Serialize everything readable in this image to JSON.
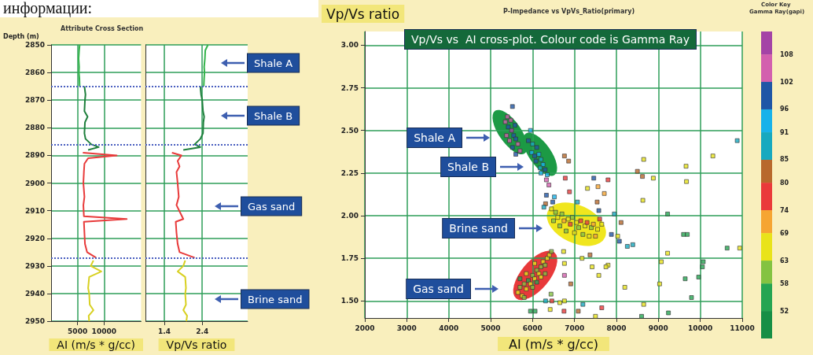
{
  "chart_data": [
    {
      "type": "line",
      "title": "Attribute Cross Section",
      "ylabel": "Depth (m)",
      "xlabel": "AI (m/s * g/cc)",
      "xlim": [
        0,
        17000
      ],
      "xticks": [
        5000,
        10000
      ],
      "ylim": [
        2950,
        2850
      ],
      "yticks": [
        2850,
        2860,
        2870,
        2880,
        2890,
        2900,
        2910,
        2920,
        2930,
        2940,
        2950
      ],
      "grid": true,
      "marker": "none",
      "line_style": "solid",
      "annotations": [
        "информации:"
      ],
      "ref_lines": [
        {
          "axis": "y",
          "value": 2865,
          "color": "#4a5fc0",
          "line_style": "dotted"
        },
        {
          "axis": "y",
          "value": 2886,
          "color": "#4a5fc0",
          "line_style": "dotted"
        },
        {
          "axis": "y",
          "value": 2927,
          "color": "#4a5fc0",
          "line_style": "dotted"
        }
      ],
      "series": [
        {
          "color": "#33b44a",
          "x": [
            5400,
            5300,
            5200,
            5300,
            5250,
            5350,
            5400
          ],
          "values": [
            2850,
            2852,
            2855,
            2858,
            2860,
            2862,
            2865
          ]
        },
        {
          "color": "#1e7f3c",
          "x": [
            6300,
            6500,
            6400,
            6300,
            6900,
            6400,
            6300,
            6500,
            7600,
            9000,
            7000
          ],
          "values": [
            2865,
            2868,
            2870,
            2874,
            2876,
            2878,
            2882,
            2884,
            2886,
            2887,
            2888
          ]
        },
        {
          "color": "#e83a3a",
          "x": [
            6000,
            12400,
            7000,
            6300,
            6200,
            6100,
            6300,
            6100,
            6200,
            14300,
            6200,
            6300,
            6400,
            6800,
            8500
          ],
          "values": [
            2889,
            2890,
            2891,
            2893,
            2896,
            2900,
            2905,
            2908,
            2912,
            2913,
            2914,
            2918,
            2922,
            2925,
            2927
          ]
        },
        {
          "color": "#d8d020",
          "x": [
            8000,
            7500,
            9500,
            7200,
            7000,
            7200,
            7300,
            8000,
            7100,
            7200
          ],
          "values": [
            2928,
            2930,
            2932,
            2934,
            2938,
            2940,
            2944,
            2946,
            2948,
            2950
          ]
        }
      ]
    },
    {
      "type": "line",
      "xlabel": "Vp/Vs ratio",
      "xlim": [
        0.9,
        3.6
      ],
      "xticks": [
        1.4,
        2.4
      ],
      "ylim": [
        2950,
        2850
      ],
      "yticks": [
        2850,
        2860,
        2870,
        2880,
        2890,
        2900,
        2910,
        2920,
        2930,
        2940,
        2950
      ],
      "tick_labels": "x",
      "grid": true,
      "marker": "none",
      "line_style": "solid",
      "annotations": [
        "Shale A",
        "Shale B",
        "Gas sand",
        "Brine sand"
      ],
      "ref_lines": [
        {
          "axis": "y",
          "value": 2865,
          "color": "#4a5fc0",
          "line_style": "dotted"
        },
        {
          "axis": "y",
          "value": 2886,
          "color": "#4a5fc0",
          "line_style": "dotted"
        },
        {
          "axis": "y",
          "value": 2927,
          "color": "#4a5fc0",
          "line_style": "dotted"
        }
      ],
      "series": [
        {
          "color": "#33b44a",
          "x": [
            2.55,
            2.48,
            2.47,
            2.45,
            2.46,
            2.45,
            2.44
          ],
          "values": [
            2850,
            2852,
            2855,
            2858,
            2860,
            2862,
            2865
          ]
        },
        {
          "color": "#1e7f3c",
          "x": [
            2.35,
            2.37,
            2.4,
            2.42,
            2.45,
            2.43,
            2.42,
            2.35,
            2.2,
            2.35,
            1.9
          ],
          "values": [
            2865,
            2868,
            2870,
            2874,
            2876,
            2878,
            2882,
            2884,
            2886,
            2887,
            2888
          ]
        },
        {
          "color": "#e83a3a",
          "x": [
            1.6,
            1.85,
            1.75,
            1.8,
            1.72,
            1.75,
            1.78,
            1.72,
            1.9,
            1.7,
            1.72,
            1.75,
            1.8,
            2.2
          ],
          "values": [
            2889,
            2890,
            2892,
            2894,
            2896,
            2900,
            2905,
            2908,
            2913,
            2914,
            2918,
            2922,
            2925,
            2927
          ]
        },
        {
          "color": "#d8d020",
          "x": [
            1.95,
            1.9,
            1.75,
            1.95,
            1.97,
            1.95,
            1.97,
            1.9,
            2.0,
            1.98
          ],
          "values": [
            2928,
            2930,
            2932,
            2934,
            2938,
            2940,
            2944,
            2946,
            2948,
            2950
          ]
        }
      ]
    },
    {
      "type": "scatter",
      "title": "P-Impedance vs VpVs_Ratio(primary)",
      "ylabel": "Vp/Vs ratio",
      "xlabel": "AI (m/s * g/cc)",
      "xlim": [
        2000,
        11000
      ],
      "xticks": [
        2000,
        3000,
        4000,
        5000,
        6000,
        7000,
        8000,
        9000,
        10000,
        11000
      ],
      "ylim": [
        1.4,
        3.08
      ],
      "yticks": [
        {
          "value": 1.5,
          "label": "1.50"
        },
        {
          "value": 1.75,
          "label": "1.75"
        },
        {
          "value": 2,
          "label": "2.00"
        },
        {
          "value": 2.25,
          "label": "2.25"
        },
        {
          "value": 2.5,
          "label": "2.50"
        },
        {
          "value": 2.75,
          "label": "2.75"
        },
        {
          "value": 3,
          "label": "3.00"
        }
      ],
      "grid": true,
      "marker": "square",
      "legend_title": "Color Key",
      "clabel": "Gamma Ray(gapi)",
      "clim": [
        46,
        113
      ],
      "cticks": [
        52,
        58,
        63,
        69,
        74,
        80,
        85,
        91,
        96,
        102,
        108
      ],
      "annotations": [
        "Vp/Vs vs  AI cross-plot. Colour code is Gamma Ray",
        "Shale A",
        "Shale B",
        "Brine sand",
        "Gas sand"
      ],
      "x": [
        5520,
        5350,
        5420,
        5500,
        5380,
        5550,
        5450,
        5600,
        5650,
        5520,
        5700,
        5600,
        5480,
        5580,
        5400,
        5950,
        5900,
        6000,
        6100,
        5980,
        6150,
        6200,
        6080,
        6250,
        6300,
        6200,
        6350,
        6050,
        6180,
        6760,
        6860,
        6780,
        6880,
        6330,
        6390,
        6330,
        6520,
        6480,
        6310,
        6270,
        7070,
        7460,
        7800,
        7310,
        7560,
        7710,
        7540,
        7580,
        7950,
        8110,
        7880,
        8030,
        8070,
        8260,
        8390,
        8650,
        8500,
        8620,
        8880,
        8630,
        9220,
        9660,
        9670,
        10300,
        10880,
        9600,
        9690,
        10640,
        10940,
        10070,
        10050,
        9960,
        9640,
        9070,
        9030,
        9220,
        9790,
        9240,
        8600,
        8650,
        8200,
        7800,
        7750,
        7580,
        7420,
        7180,
        7370,
        6910,
        7200,
        7650,
        7500,
        7090,
        6750,
        6760,
        6650,
        6760,
        6760,
        6740,
        6460,
        6420,
        6310,
        5950,
        6060,
        6440,
        6450,
        6550,
        6600,
        6700,
        6750,
        6850,
        6900,
        6950,
        7050,
        7100,
        7150,
        7250,
        7300,
        7400,
        7450,
        7550,
        7650,
        6650,
        6800,
        7000,
        7200,
        7350,
        7500,
        6500,
        7600,
        5650,
        5700,
        5750,
        5800,
        5850,
        5900,
        5950,
        6000,
        6050,
        6100,
        6150,
        6200,
        6250,
        6300,
        6350,
        6400,
        6450,
        5700,
        5850,
        6000,
        6100,
        6200,
        6300,
        6050,
        5800
      ],
      "values": [
        2.64,
        2.55,
        2.52,
        2.5,
        2.47,
        2.47,
        2.44,
        2.45,
        2.42,
        2.4,
        2.38,
        2.36,
        2.56,
        2.53,
        2.58,
        2.5,
        2.44,
        2.42,
        2.4,
        2.37,
        2.36,
        2.33,
        2.32,
        2.3,
        2.27,
        2.25,
        2.24,
        2.35,
        2.28,
        2.35,
        2.32,
        2.22,
        2.14,
        2.21,
        2.18,
        2.12,
        2.11,
        2.08,
        2.07,
        2.05,
        2.08,
        2.22,
        2.21,
        2.16,
        2.17,
        2.13,
        2.08,
        2.03,
        2.01,
        1.96,
        1.89,
        1.88,
        1.85,
        1.82,
        1.83,
        2.33,
        2.26,
        2.23,
        2.22,
        2.09,
        2.01,
        2.29,
        2.2,
        2.35,
        2.44,
        1.89,
        1.89,
        1.81,
        1.81,
        1.73,
        1.7,
        1.64,
        1.63,
        1.73,
        1.6,
        1.78,
        1.52,
        1.43,
        1.41,
        1.48,
        1.58,
        1.71,
        1.7,
        1.65,
        1.7,
        1.75,
        1.77,
        1.6,
        1.48,
        1.46,
        1.41,
        1.44,
        1.44,
        1.5,
        1.49,
        1.65,
        1.72,
        1.79,
        1.5,
        1.45,
        1.5,
        1.44,
        1.44,
        1.54,
        2.04,
        2.02,
        1.99,
        2.01,
        1.97,
        1.98,
        1.95,
        1.99,
        1.96,
        1.93,
        1.97,
        1.94,
        1.96,
        1.93,
        1.95,
        1.92,
        1.95,
        1.94,
        1.91,
        1.9,
        1.89,
        1.88,
        1.88,
        1.97,
        1.98,
        1.55,
        1.58,
        1.53,
        1.6,
        1.57,
        1.62,
        1.6,
        1.65,
        1.63,
        1.68,
        1.66,
        1.7,
        1.73,
        1.71,
        1.75,
        1.77,
        1.79,
        1.63,
        1.66,
        1.58,
        1.61,
        1.64,
        1.66,
        1.72,
        1.52
      ],
      "cvalues": [
        100,
        105,
        99,
        108,
        104,
        97,
        106,
        100,
        103,
        98,
        107,
        99,
        102,
        96,
        104,
        93,
        97,
        90,
        98,
        92,
        95,
        89,
        99,
        93,
        97,
        91,
        95,
        100,
        88,
        80,
        82,
        78,
        78,
        104,
        106,
        100,
        94,
        96,
        80,
        88,
        90,
        96,
        78,
        66,
        70,
        72,
        80,
        96,
        88,
        82,
        96,
        65,
        98,
        88,
        90,
        66,
        80,
        80,
        66,
        68,
        55,
        66,
        64,
        68,
        85,
        55,
        55,
        55,
        64,
        55,
        55,
        55,
        55,
        66,
        64,
        64,
        55,
        55,
        55,
        64,
        64,
        64,
        66,
        66,
        64,
        68,
        82,
        80,
        88,
        76,
        66,
        80,
        78,
        64,
        64,
        104,
        66,
        64,
        76,
        66,
        86,
        55,
        55,
        58,
        64,
        58,
        66,
        60,
        72,
        64,
        78,
        58,
        66,
        60,
        74,
        64,
        78,
        60,
        70,
        64,
        66,
        58,
        62,
        66,
        58,
        64,
        70,
        60,
        76,
        64,
        58,
        66,
        60,
        64,
        55,
        66,
        60,
        64,
        58,
        66,
        62,
        64,
        58,
        66,
        64,
        60,
        55,
        68,
        62,
        55,
        66,
        60,
        64,
        58
      ]
    }
  ]
}
